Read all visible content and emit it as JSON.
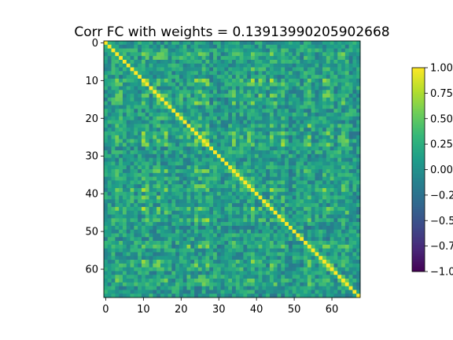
{
  "chart_data": {
    "type": "heatmap",
    "title": "Corr FC with weights = 0.13913990205902668",
    "xlabel": "",
    "ylabel": "",
    "n_rows": 68,
    "n_cols": 68,
    "diagonal_value": 1.0,
    "matrix_note": "Symmetric 68x68 correlation matrix; diagonal = 1.0, off-diagonal cells mostly between about -0.4 and 0.7 (mean about 0.15).",
    "x_ticks": [
      0,
      10,
      20,
      30,
      40,
      50,
      60
    ],
    "y_ticks": [
      0,
      10,
      20,
      30,
      40,
      50,
      60
    ],
    "colorbar": {
      "colormap": "viridis",
      "vmin": -1.0,
      "vmax": 1.0,
      "ticks": [
        1.0,
        0.75,
        0.5,
        0.25,
        0.0,
        -0.25,
        -0.5,
        -0.75,
        -1.0
      ],
      "tick_labels": [
        "1.00",
        "0.75",
        "0.50",
        "0.25",
        "0.00",
        "−0.25",
        "−0.50",
        "−0.75",
        "−1.00"
      ]
    },
    "grid": false,
    "legend": "colorbar-right"
  }
}
